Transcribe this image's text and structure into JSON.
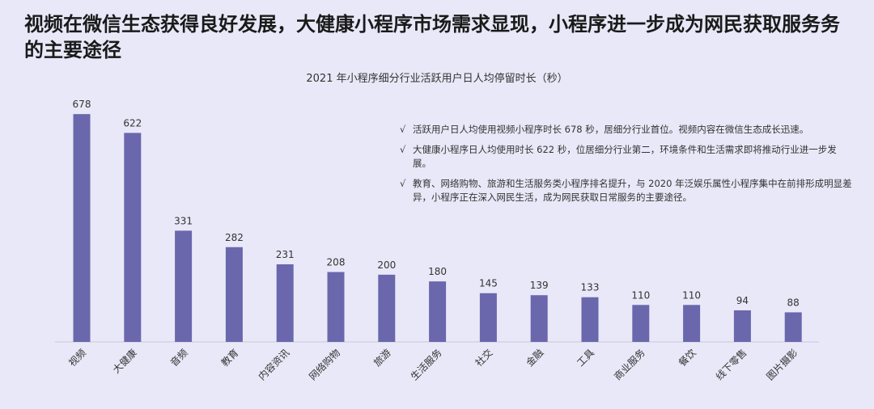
{
  "headline": "视频在微信生态获得良好发展，大健康小程序市场需求显现，小程序进一步成为网民获取服务务的主要途径",
  "chart_data": {
    "type": "bar",
    "title": "2021 年小程序细分行业活跃用户日人均停留时长（秒）",
    "xlabel": "",
    "ylabel": "",
    "ylim": [
      0,
      700
    ],
    "grid": false,
    "categories": [
      "视频",
      "大健康",
      "音频",
      "教育",
      "内容资讯",
      "网络购物",
      "旅游",
      "生活服务",
      "社交",
      "金融",
      "工具",
      "商业服务",
      "餐饮",
      "线下零售",
      "图片摄影"
    ],
    "values": [
      678,
      622,
      331,
      282,
      231,
      208,
      200,
      180,
      145,
      139,
      133,
      110,
      110,
      94,
      88
    ],
    "bar_color": "#6a67ad"
  },
  "notes": [
    {
      "mark": "√",
      "text": "活跃用户日人均使用视频小程序时长 678 秒，居细分行业首位。视频内容在微信生态成长迅速。"
    },
    {
      "mark": "√",
      "text": "大健康小程序日人均使用时长 622 秒，位居细分行业第二，环境条件和生活需求即将推动行业进一步发展。"
    },
    {
      "mark": "√",
      "text": "教育、网络购物、旅游和生活服务类小程序排名提升，与 2020 年泛娱乐属性小程序集中在前排形成明显差异，小程序正在深入网民生活，成为网民获取日常服务的主要途径。"
    }
  ]
}
